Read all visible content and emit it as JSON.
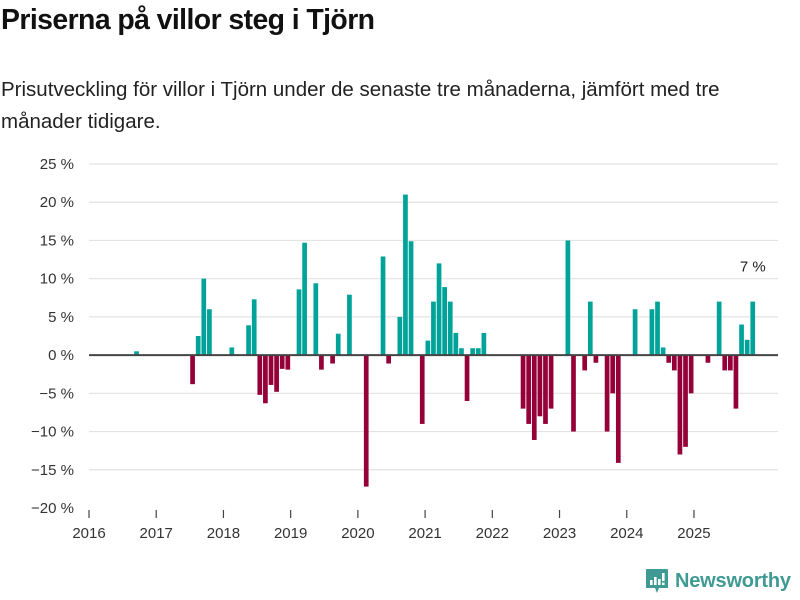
{
  "header": {
    "title": "Priserna på villor steg i Tjörn",
    "subtitle": "Prisutveckling för villor i Tjörn under de senaste tre månaderna, jämfört med tre månader tidigare."
  },
  "brand": {
    "name": "Newsworthy",
    "color": "#3f9a93"
  },
  "colors": {
    "positive": "#00a39a",
    "negative": "#950038",
    "grid": "#e3e3e3",
    "zero_line": "#444444"
  },
  "chart_data": {
    "type": "bar",
    "title": "Priserna på villor steg i Tjörn",
    "xlabel": "",
    "ylabel": "",
    "ylim": [
      -20,
      25
    ],
    "yticks": [
      25,
      20,
      15,
      10,
      5,
      0,
      -5,
      -10,
      -15,
      -20
    ],
    "ytick_labels": [
      "25 %",
      "20 %",
      "15 %",
      "10 %",
      "5 %",
      "0 %",
      "−5 %",
      "−10 %",
      "−15 %",
      "−20 %"
    ],
    "xlim": [
      "2016-01",
      "2026-04"
    ],
    "xticks": [
      "2016",
      "2017",
      "2018",
      "2019",
      "2020",
      "2021",
      "2022",
      "2023",
      "2024",
      "2025"
    ],
    "grid": true,
    "annotation": {
      "month": "2025-11",
      "label": "7 %"
    },
    "points": [
      {
        "month": "2016-09",
        "value": 0.5
      },
      {
        "month": "2017-07",
        "value": -3.8
      },
      {
        "month": "2017-08",
        "value": 2.5
      },
      {
        "month": "2017-09",
        "value": 10.0
      },
      {
        "month": "2017-10",
        "value": 6.0
      },
      {
        "month": "2018-02",
        "value": 1.0
      },
      {
        "month": "2018-05",
        "value": 3.9
      },
      {
        "month": "2018-06",
        "value": 7.3
      },
      {
        "month": "2018-07",
        "value": -5.2
      },
      {
        "month": "2018-08",
        "value": -6.3
      },
      {
        "month": "2018-09",
        "value": -3.9
      },
      {
        "month": "2018-10",
        "value": -4.8
      },
      {
        "month": "2018-11",
        "value": -1.8
      },
      {
        "month": "2018-12",
        "value": -1.9
      },
      {
        "month": "2019-02",
        "value": 8.6
      },
      {
        "month": "2019-03",
        "value": 14.7
      },
      {
        "month": "2019-05",
        "value": 9.4
      },
      {
        "month": "2019-06",
        "value": -1.9
      },
      {
        "month": "2019-08",
        "value": -1.1
      },
      {
        "month": "2019-09",
        "value": 2.8
      },
      {
        "month": "2019-11",
        "value": 7.9
      },
      {
        "month": "2020-02",
        "value": -17.2
      },
      {
        "month": "2020-05",
        "value": 12.9
      },
      {
        "month": "2020-06",
        "value": -1.1
      },
      {
        "month": "2020-08",
        "value": 5.0
      },
      {
        "month": "2020-09",
        "value": 21.0
      },
      {
        "month": "2020-10",
        "value": 14.9
      },
      {
        "month": "2020-12",
        "value": -9.0
      },
      {
        "month": "2021-01",
        "value": 1.9
      },
      {
        "month": "2021-02",
        "value": 7.0
      },
      {
        "month": "2021-03",
        "value": 12.0
      },
      {
        "month": "2021-04",
        "value": 8.9
      },
      {
        "month": "2021-05",
        "value": 7.0
      },
      {
        "month": "2021-06",
        "value": 2.9
      },
      {
        "month": "2021-07",
        "value": 0.9
      },
      {
        "month": "2021-08",
        "value": -6.0
      },
      {
        "month": "2021-09",
        "value": 0.9
      },
      {
        "month": "2021-10",
        "value": 0.9
      },
      {
        "month": "2021-11",
        "value": 2.9
      },
      {
        "month": "2022-06",
        "value": -7.0
      },
      {
        "month": "2022-07",
        "value": -9.0
      },
      {
        "month": "2022-08",
        "value": -11.1
      },
      {
        "month": "2022-09",
        "value": -8.0
      },
      {
        "month": "2022-10",
        "value": -9.0
      },
      {
        "month": "2022-11",
        "value": -7.0
      },
      {
        "month": "2023-02",
        "value": 15.0
      },
      {
        "month": "2023-03",
        "value": -10.0
      },
      {
        "month": "2023-05",
        "value": -2.0
      },
      {
        "month": "2023-06",
        "value": 7.0
      },
      {
        "month": "2023-07",
        "value": -1.0
      },
      {
        "month": "2023-09",
        "value": -10.0
      },
      {
        "month": "2023-10",
        "value": -5.0
      },
      {
        "month": "2023-11",
        "value": -14.1
      },
      {
        "month": "2024-02",
        "value": 6.0
      },
      {
        "month": "2024-05",
        "value": 6.0
      },
      {
        "month": "2024-06",
        "value": 7.0
      },
      {
        "month": "2024-07",
        "value": 1.0
      },
      {
        "month": "2024-08",
        "value": -1.0
      },
      {
        "month": "2024-09",
        "value": -2.0
      },
      {
        "month": "2024-10",
        "value": -13.0
      },
      {
        "month": "2024-11",
        "value": -12.0
      },
      {
        "month": "2024-12",
        "value": -5.0
      },
      {
        "month": "2025-03",
        "value": -1.0
      },
      {
        "month": "2025-05",
        "value": 7.0
      },
      {
        "month": "2025-06",
        "value": -2.0
      },
      {
        "month": "2025-07",
        "value": -2.0
      },
      {
        "month": "2025-08",
        "value": -7.0
      },
      {
        "month": "2025-09",
        "value": 4.0
      },
      {
        "month": "2025-10",
        "value": 2.0
      },
      {
        "month": "2025-11",
        "value": 7.0
      }
    ]
  }
}
